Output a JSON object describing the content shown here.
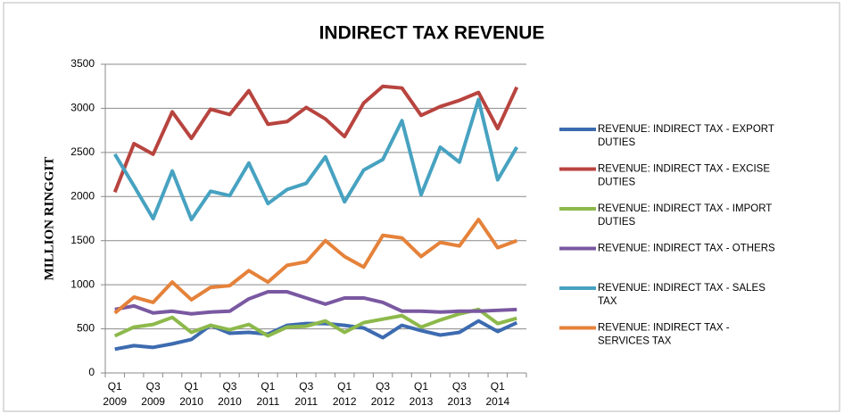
{
  "chart_data": {
    "type": "line",
    "title": "INDIRECT TAX REVENUE",
    "y_label": "MILLION RINGGIT",
    "categories": [
      "Q1 2009",
      null,
      "Q3 2009",
      null,
      "Q1 2010",
      null,
      "Q3 2010",
      null,
      "Q1 2011",
      null,
      "Q3 2011",
      null,
      "Q1 2012",
      null,
      "Q3 2012",
      null,
      "Q1 2013",
      null,
      "Q3 2013",
      null,
      "Q1 2014",
      null
    ],
    "series": [
      {
        "name": "REVENUE: INDIRECT TAX - EXPORT DUTIES",
        "color": "#3d6bb0",
        "values": [
          270,
          310,
          290,
          330,
          380,
          540,
          450,
          460,
          440,
          540,
          560,
          560,
          540,
          510,
          400,
          540,
          480,
          430,
          460,
          590,
          470,
          570
        ]
      },
      {
        "name": "REVENUE: INDIRECT TAX - EXCISE DUTIES",
        "color": "#b8443f",
        "values": [
          2050,
          2600,
          2480,
          2960,
          2660,
          2990,
          2930,
          3200,
          2820,
          2850,
          3010,
          2880,
          2680,
          3060,
          3250,
          3230,
          2920,
          3020,
          3090,
          3180,
          2770,
          3240
        ]
      },
      {
        "name": "REVENUE: INDIRECT TAX - IMPORT DUTIES",
        "color": "#8db94b",
        "values": [
          420,
          520,
          550,
          630,
          460,
          540,
          490,
          550,
          420,
          520,
          530,
          590,
          460,
          570,
          610,
          650,
          520,
          600,
          670,
          720,
          560,
          620
        ]
      },
      {
        "name": "REVENUE: INDIRECT TAX - OTHERS",
        "color": "#7a58a1",
        "values": [
          720,
          760,
          680,
          700,
          670,
          690,
          700,
          840,
          920,
          920,
          850,
          780,
          850,
          850,
          800,
          700,
          700,
          690,
          700,
          700,
          710,
          720
        ]
      },
      {
        "name": "REVENUE: INDIRECT TAX - SALES TAX",
        "color": "#47a2c1",
        "values": [
          2480,
          2120,
          1750,
          2290,
          1740,
          2060,
          2010,
          2380,
          1920,
          2080,
          2150,
          2450,
          1940,
          2300,
          2420,
          2860,
          2020,
          2560,
          2390,
          3100,
          2190,
          2560
        ]
      },
      {
        "name": "REVENUE: INDIRECT TAX - SERVICES TAX",
        "color": "#e5823a",
        "values": [
          680,
          860,
          800,
          1030,
          830,
          970,
          990,
          1160,
          1030,
          1220,
          1260,
          1500,
          1320,
          1200,
          1560,
          1530,
          1320,
          1480,
          1440,
          1740,
          1420,
          1500
        ]
      }
    ],
    "ylim": [
      0,
      3500
    ],
    "yticks": [
      0,
      500,
      1000,
      1500,
      2000,
      2500,
      3000,
      3500
    ],
    "grid": true,
    "legend": "right"
  }
}
